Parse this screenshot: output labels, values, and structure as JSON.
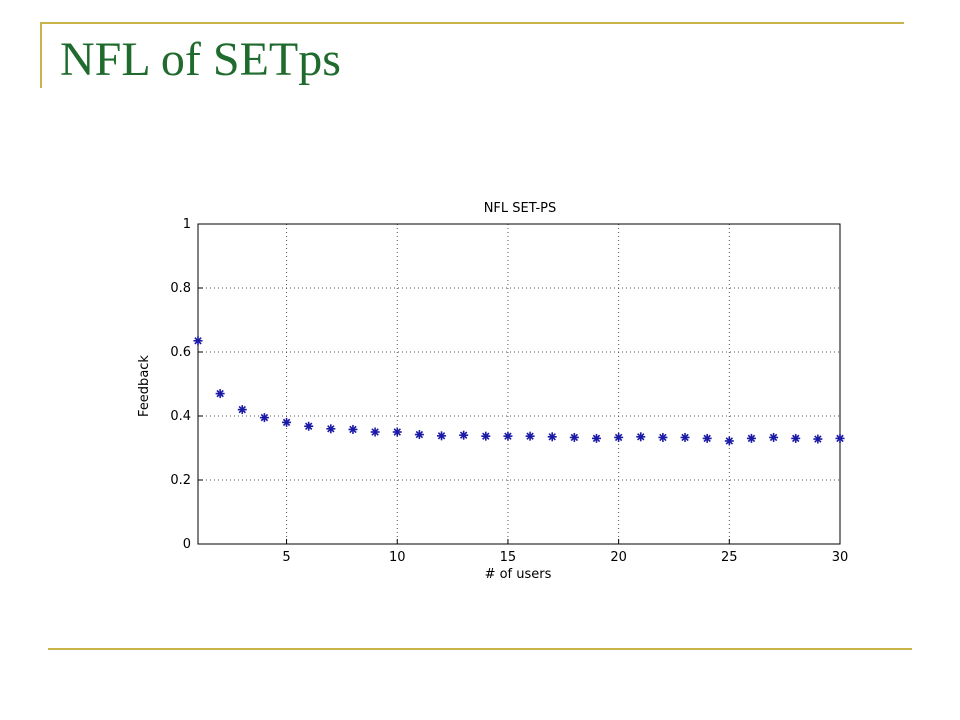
{
  "slide": {
    "title": "NFL of SETps"
  },
  "colors": {
    "title": "#1f6b2e",
    "rule": "#c9b44a",
    "marker": "#1a1aa6",
    "axis": "#000000",
    "grid": "#555555"
  },
  "chart_data": {
    "type": "scatter",
    "title": "NFL SET-PS",
    "xlabel": "# of users",
    "ylabel": "Feedback",
    "xlim": [
      1,
      30
    ],
    "ylim": [
      0,
      1
    ],
    "xticks": [
      5,
      10,
      15,
      20,
      25,
      30
    ],
    "yticks": [
      0,
      0.2,
      0.4,
      0.6,
      0.8,
      1
    ],
    "ytick_labels": [
      "0",
      "0.2",
      "0.4",
      "0.6",
      "0.8",
      "1"
    ],
    "grid": true,
    "marker": "asterisk",
    "x": [
      1,
      2,
      3,
      4,
      5,
      6,
      7,
      8,
      9,
      10,
      11,
      12,
      13,
      14,
      15,
      16,
      17,
      18,
      19,
      20,
      21,
      22,
      23,
      24,
      25,
      26,
      27,
      28,
      29,
      30
    ],
    "y": [
      0.635,
      0.47,
      0.42,
      0.395,
      0.38,
      0.368,
      0.36,
      0.358,
      0.35,
      0.35,
      0.342,
      0.338,
      0.34,
      0.337,
      0.337,
      0.337,
      0.335,
      0.333,
      0.33,
      0.333,
      0.335,
      0.333,
      0.333,
      0.33,
      0.322,
      0.33,
      0.333,
      0.33,
      0.328,
      0.33
    ]
  }
}
